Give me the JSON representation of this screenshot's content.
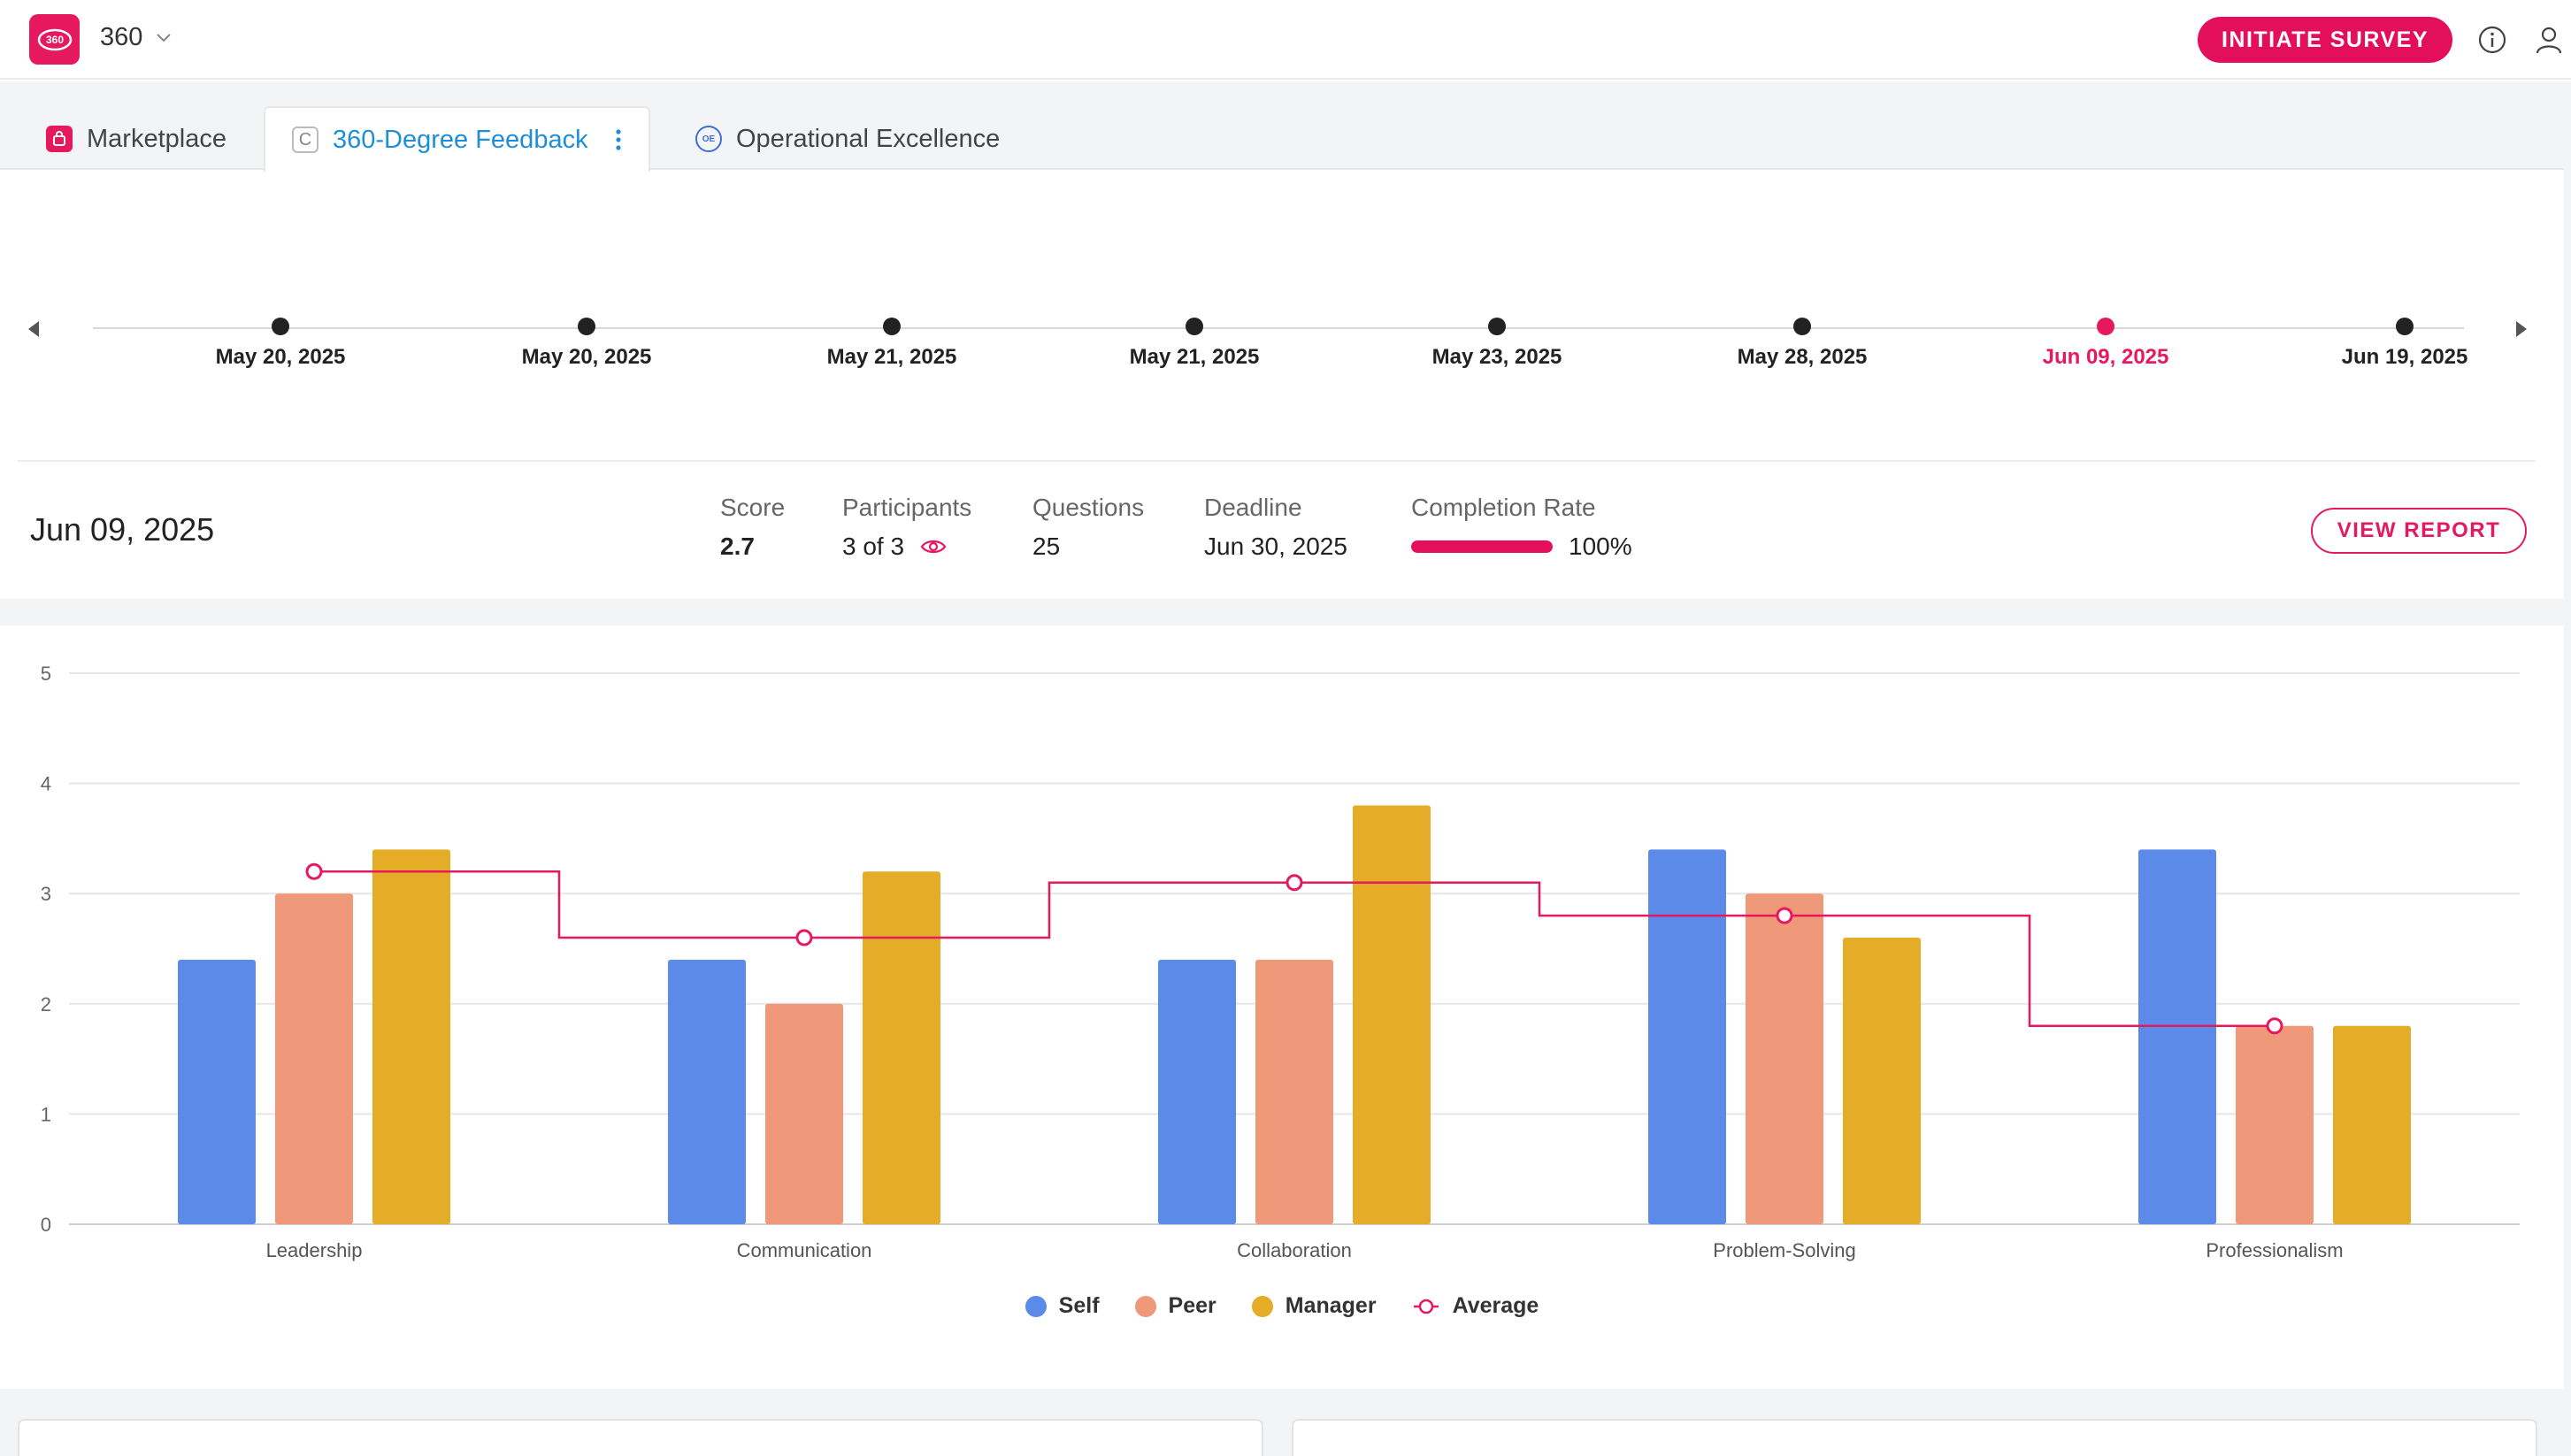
{
  "header": {
    "app_logo_text": "360",
    "app_name": "360",
    "initiate_button": "INITIATE SURVEY",
    "info_icon": "info-icon",
    "user_icon": "user-icon"
  },
  "tabs": [
    {
      "label": "Marketplace",
      "icon": "shopping-bag-icon",
      "active": false
    },
    {
      "label": "360-Degree Feedback",
      "icon": "c-letter-icon",
      "icon_text": "C",
      "active": true
    },
    {
      "label": "Operational Excellence",
      "icon": "oe-icon",
      "icon_text": "OE",
      "active": false
    }
  ],
  "timeline": {
    "dates": [
      "May 20, 2025",
      "May 20, 2025",
      "May 21, 2025",
      "May 21, 2025",
      "May 23, 2025",
      "May 28, 2025",
      "Jun 09, 2025",
      "Jun 19, 2025"
    ],
    "active_index": 6
  },
  "summary": {
    "date": "Jun 09, 2025",
    "score_label": "Score",
    "score_value": "2.7",
    "participants_label": "Participants",
    "participants_value": "3 of 3",
    "questions_label": "Questions",
    "questions_value": "25",
    "deadline_label": "Deadline",
    "deadline_value": "Jun 30, 2025",
    "completion_label": "Completion Rate",
    "completion_value": "100%",
    "completion_fraction": 1.0,
    "view_report_button": "VIEW REPORT"
  },
  "colors": {
    "accent": "#e40f5a",
    "self": "#5b8ae8",
    "peer": "#f0997a",
    "manager": "#e5ac27",
    "average": "#e6195e",
    "link": "#1f8ed8"
  },
  "chart_data": {
    "type": "bar",
    "categories": [
      "Leadership",
      "Communication",
      "Collaboration",
      "Problem-Solving",
      "Professionalism"
    ],
    "series": [
      {
        "name": "Self",
        "values": [
          2.4,
          2.4,
          2.4,
          3.4,
          3.4
        ]
      },
      {
        "name": "Peer",
        "values": [
          3.0,
          2.0,
          2.4,
          3.0,
          1.8
        ]
      },
      {
        "name": "Manager",
        "values": [
          3.4,
          3.2,
          3.8,
          2.6,
          1.8
        ]
      },
      {
        "name": "Average",
        "type": "step-line",
        "values": [
          3.2,
          2.6,
          3.1,
          2.8,
          1.8
        ]
      }
    ],
    "ylim": [
      0,
      5
    ],
    "yticks": [
      0,
      1,
      2,
      3,
      4,
      5
    ],
    "grid": true,
    "legend": "bottom-center"
  }
}
